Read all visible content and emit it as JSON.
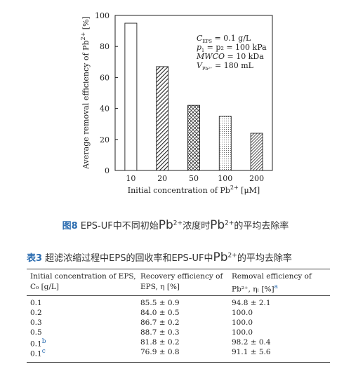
{
  "chart_data": {
    "type": "bar",
    "categories": [
      "10",
      "20",
      "50",
      "100",
      "200"
    ],
    "values": [
      95,
      67,
      42,
      35,
      24
    ],
    "patterns": [
      "open",
      "diagonal-hatch",
      "crosshatch",
      "dotted",
      "dense-hatch"
    ],
    "xlabel_prefix": "Initial concentration of Pb",
    "xlabel_sup": "2+",
    "xlabel_suffix": " [μM]",
    "ylabel_prefix": "Average removal efficiency of Pb",
    "ylabel_sup": "2+",
    "ylabel_suffix": " [%]",
    "ylim": [
      0,
      100
    ],
    "yticks": [
      0,
      20,
      40,
      60,
      80,
      100
    ],
    "annotations": [
      {
        "main": "C",
        "sub": "EPS",
        "rest": " = 0.1 g/L"
      },
      {
        "main": "p",
        "sub": "1",
        "rest": " = p₂ = 100 kPa"
      },
      {
        "main": "MWCO",
        "sub": "",
        "rest": " = 10 kDa"
      },
      {
        "main": "V",
        "sub": "Pb²⁺",
        "rest": " = 180 mL"
      }
    ]
  },
  "figure_caption": {
    "label": "图8",
    "text_a": " EPS-UF中不同初始",
    "pb1": "Pb",
    "sup1": "2+",
    "text_b": "浓度时",
    "pb2": "Pb",
    "sup2": "2+",
    "text_c": "的平均去除率"
  },
  "table_caption": {
    "label": "表3",
    "text_a": " 超滤浓缩过程中EPS的回收率和EPS-UF中",
    "pb": "Pb",
    "sup": "2+",
    "text_b": "的平均去除率"
  },
  "table": {
    "headers": [
      {
        "line1": "Initial concentration of EPS,",
        "line2": "C₀ [g/L]"
      },
      {
        "line1": "Recovery efficiency of",
        "line2": "EPS, η [%]"
      },
      {
        "line1": "Removal efficiency of",
        "line2": "Pb²⁺, ηₗ [%]",
        "note": "a"
      }
    ],
    "rows": [
      {
        "c0": "0.1",
        "note": "",
        "recovery": "85.5 ± 0.9",
        "removal": "94.8 ± 2.1"
      },
      {
        "c0": "0.2",
        "note": "",
        "recovery": "84.0 ± 0.5",
        "removal": "100.0"
      },
      {
        "c0": "0.3",
        "note": "",
        "recovery": "86.7 ± 0.2",
        "removal": "100.0"
      },
      {
        "c0": "0.5",
        "note": "",
        "recovery": "88.7 ± 0.3",
        "removal": "100.0"
      },
      {
        "c0": "0.1",
        "note": "b",
        "recovery": "81.8 ± 0.2",
        "removal": "98.2 ± 0.4"
      },
      {
        "c0": "0.1",
        "note": "c",
        "recovery": "76.9 ± 0.8",
        "removal": "91.1 ± 5.6"
      }
    ]
  }
}
